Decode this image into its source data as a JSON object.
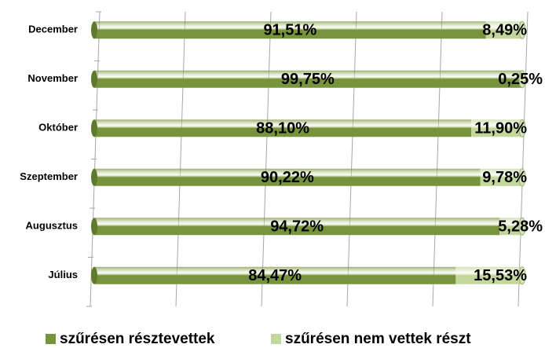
{
  "chart_data": {
    "type": "stacked_bar_horizontal",
    "categories": [
      "December",
      "November",
      "Október",
      "Szeptember",
      "Augusztus",
      "Július"
    ],
    "series": [
      {
        "name": "szűrésen résztevettek",
        "color": "#77933c",
        "values": [
          91.51,
          99.75,
          88.1,
          90.22,
          94.72,
          84.47
        ],
        "value_labels": [
          "91,51%",
          "99,75%",
          "88,10%",
          "90,22%",
          "94,72%",
          "84,47%"
        ]
      },
      {
        "name": "szűrésen nem vettek részt",
        "color": "#c3d69b",
        "values": [
          8.49,
          0.25,
          11.9,
          9.78,
          5.28,
          15.53
        ],
        "value_labels": [
          "8,49%",
          "0,25%",
          "11,90%",
          "9,78%",
          "5,28%",
          "15,53%"
        ]
      }
    ],
    "xlim": [
      0,
      100
    ],
    "xticks": [
      0,
      20,
      40,
      60,
      80,
      100
    ],
    "grid": true,
    "legend": "bottom"
  }
}
